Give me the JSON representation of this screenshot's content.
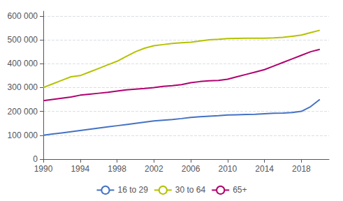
{
  "chart_data": {
    "type": "line",
    "x": [
      1990,
      1991,
      1992,
      1993,
      1994,
      1995,
      1996,
      1997,
      1998,
      1999,
      2000,
      2001,
      2002,
      2003,
      2004,
      2005,
      2006,
      2007,
      2008,
      2009,
      2010,
      2011,
      2012,
      2013,
      2014,
      2015,
      2016,
      2017,
      2018,
      2019,
      2020
    ],
    "series": [
      {
        "name": "16 to 29",
        "color": "#4472c4",
        "values": [
          100000,
          105000,
          110000,
          115000,
          120000,
          125000,
          130000,
          135000,
          140000,
          145000,
          150000,
          155000,
          160000,
          163000,
          166000,
          170000,
          175000,
          178000,
          180000,
          182000,
          185000,
          186000,
          187000,
          188000,
          190000,
          192000,
          193000,
          195000,
          200000,
          220000,
          250000
        ]
      },
      {
        "name": "30 to 64",
        "color": "#b5c200",
        "values": [
          300000,
          315000,
          330000,
          345000,
          350000,
          365000,
          380000,
          395000,
          410000,
          430000,
          450000,
          465000,
          475000,
          480000,
          485000,
          488000,
          490000,
          495000,
          500000,
          502000,
          505000,
          506000,
          507000,
          507000,
          507000,
          508000,
          510000,
          515000,
          520000,
          530000,
          540000
        ]
      },
      {
        "name": "65+",
        "color": "#b0006e",
        "values": [
          245000,
          250000,
          255000,
          260000,
          268000,
          272000,
          276000,
          280000,
          285000,
          290000,
          293000,
          296000,
          300000,
          305000,
          308000,
          312000,
          320000,
          325000,
          328000,
          330000,
          335000,
          345000,
          355000,
          365000,
          375000,
          390000,
          405000,
          420000,
          435000,
          450000,
          460000
        ]
      }
    ],
    "xlim": [
      1990,
      2021
    ],
    "xticks": [
      1990,
      1994,
      1998,
      2002,
      2006,
      2010,
      2014,
      2018
    ],
    "ylim": [
      0,
      620000
    ],
    "yticks": [
      0,
      {
        "value": 100000,
        "label": "100 000"
      },
      {
        "value": 200000,
        "label": "200 000"
      },
      {
        "value": 300000,
        "label": "300 000"
      },
      {
        "value": 400000,
        "label": "400 000"
      },
      {
        "value": 500000,
        "label": "500 000"
      },
      {
        "value": 600000,
        "label": "600 000"
      }
    ],
    "grid": true,
    "legend": "bottom"
  }
}
